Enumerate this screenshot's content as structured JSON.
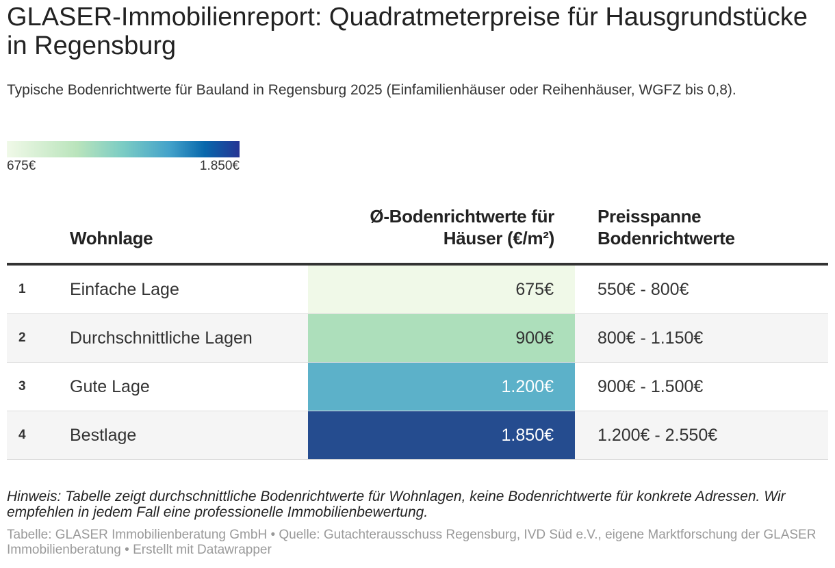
{
  "title": "GLASER-Immobilienreport: Quadratmeterpreise für Hausgrundstücke in Regensburg",
  "subtitle": "Typische Bodenrichtwerte für Bauland in Regensburg 2025 (Einfamilienhäuser oder Reihenhäuser, WGFZ bis 0,8).",
  "legend": {
    "min_label": "675€",
    "max_label": "1.850€",
    "min_value": 675,
    "max_value": 1850
  },
  "table": {
    "headers": {
      "rank": "",
      "lage": "Wohnlage",
      "avg": "Ø-Bodenrichtwerte für Häuser (€/m²)",
      "span": "Preisspanne Bodenrichtwerte"
    },
    "rows": [
      {
        "rank": "1",
        "lage": "Einfache Lage",
        "avg": "675€",
        "avg_value": 675,
        "span": "550€ - 800€",
        "cell_color": "#f0f9e8",
        "text_color": "#333333"
      },
      {
        "rank": "2",
        "lage": "Durchschnittliche Lagen",
        "avg": "900€",
        "avg_value": 900,
        "span": "800€ - 1.150€",
        "cell_color": "#addfbb",
        "text_color": "#333333"
      },
      {
        "rank": "3",
        "lage": "Gute Lage",
        "avg": "1.200€",
        "avg_value": 1200,
        "span": "900€ - 1.500€",
        "cell_color": "#5cb1c9",
        "text_color": "#ffffff"
      },
      {
        "rank": "4",
        "lage": "Bestlage",
        "avg": "1.850€",
        "avg_value": 1850,
        "span": "1.200€ - 2.550€",
        "cell_color": "#254c8f",
        "text_color": "#ffffff"
      }
    ]
  },
  "chart_data": {
    "type": "table",
    "title": "GLASER-Immobilienreport: Quadratmeterpreise für Hausgrundstücke in Regensburg",
    "columns": [
      "",
      "Wohnlage",
      "Ø-Bodenrichtwerte für Häuser (€/m²)",
      "Preisspanne Bodenrichtwerte"
    ],
    "categories": [
      "Einfache Lage",
      "Durchschnittliche Lagen",
      "Gute Lage",
      "Bestlage"
    ],
    "values": [
      675,
      900,
      1200,
      1850
    ],
    "ranges": [
      [
        550,
        800
      ],
      [
        800,
        1150
      ],
      [
        900,
        1500
      ],
      [
        1200,
        2550
      ]
    ],
    "color_scale": {
      "min": 675,
      "max": 1850
    }
  },
  "hint": "Hinweis: Tabelle zeigt durchschnittliche Bodenrichtwerte für Wohnlagen, keine Bodenrichtwerte für konkrete Adressen. Wir empfehlen in jedem Fall eine professionelle Immobilienbewertung.",
  "source": "Tabelle: GLASER Immobilienberatung GmbH • Quelle: Gutachterausschuss Regensburg, IVD Süd e.V., eigene Marktforschung der GLASER Immobilienberatung • Erstellt mit Datawrapper"
}
